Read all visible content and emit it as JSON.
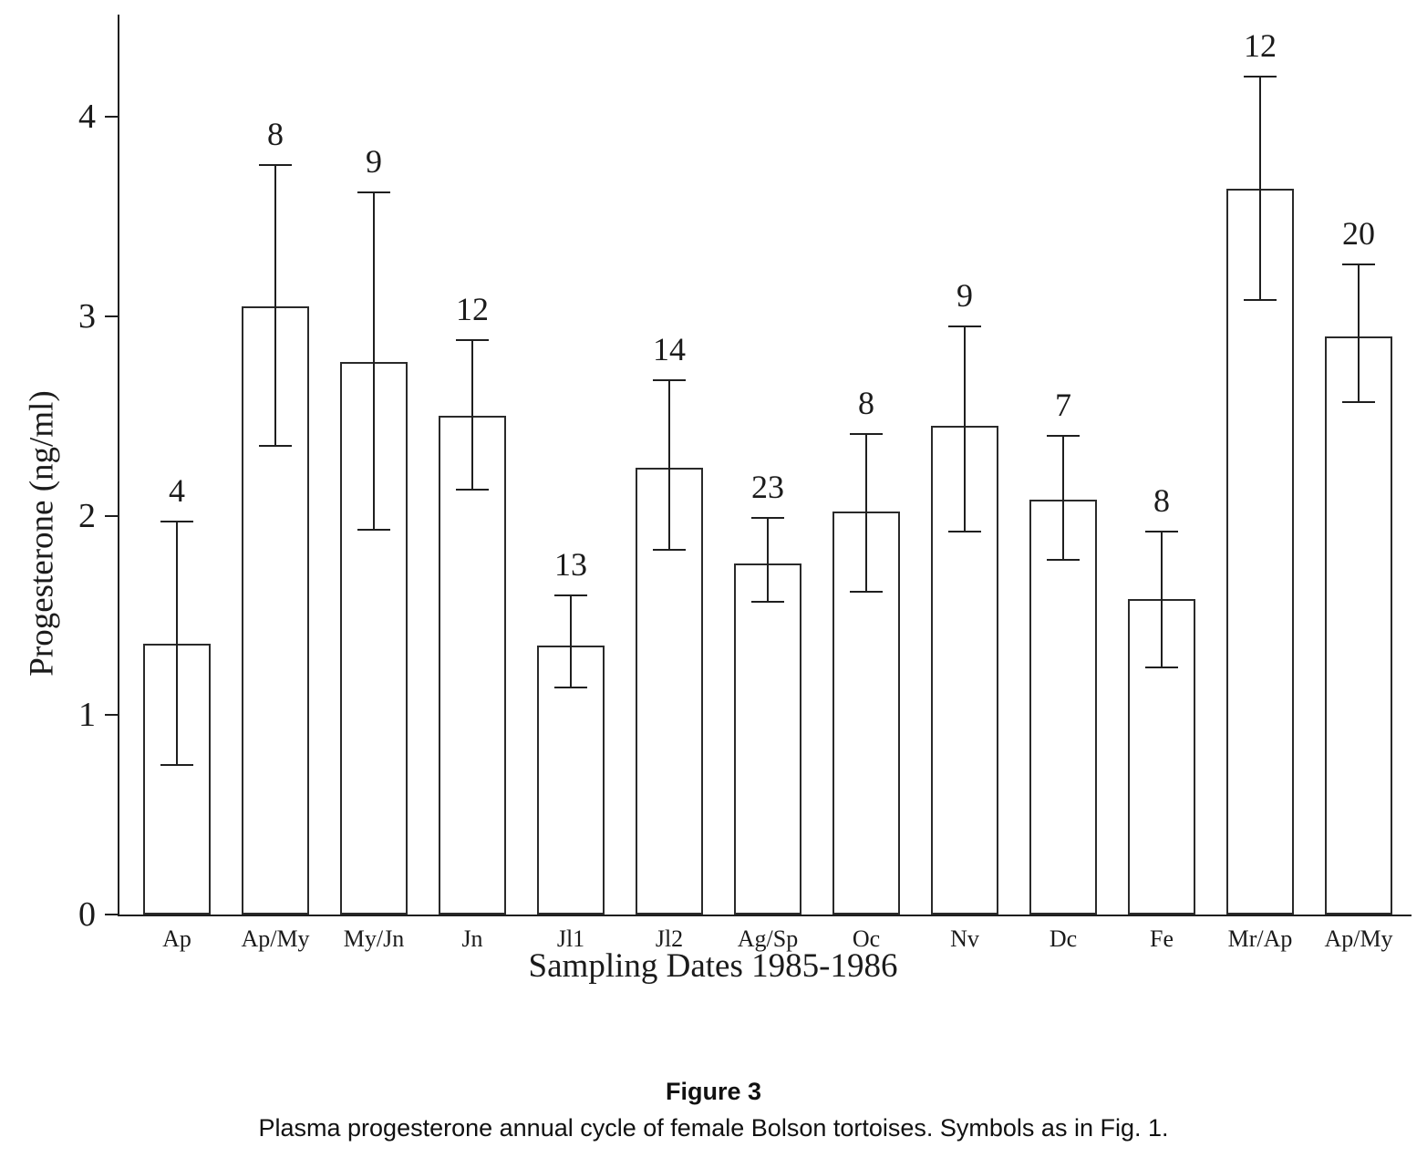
{
  "chart_data": {
    "type": "bar",
    "title": "",
    "xlabel": "Sampling Dates 1985-1986",
    "ylabel": "Progesterone (ng/ml)",
    "yticks": [
      0,
      1,
      2,
      3,
      4
    ],
    "ylim": [
      0,
      4.5
    ],
    "grid": false,
    "legend": "none",
    "categories": [
      "Ap",
      "Ap/My",
      "My/Jn",
      "Jn",
      "Jl1",
      "Jl2",
      "Ag/Sp",
      "Oc",
      "Nv",
      "Dc",
      "Fe",
      "Mr/Ap",
      "Ap/My"
    ],
    "values": [
      1.36,
      3.05,
      2.77,
      2.5,
      1.35,
      2.24,
      1.76,
      2.02,
      2.45,
      2.08,
      1.58,
      3.64,
      2.9
    ],
    "error_low": [
      0.75,
      2.35,
      1.93,
      2.13,
      1.14,
      1.83,
      1.57,
      1.62,
      1.92,
      1.78,
      1.24,
      3.08,
      2.57
    ],
    "error_high": [
      1.97,
      3.76,
      3.62,
      2.88,
      1.6,
      2.68,
      1.99,
      2.41,
      2.95,
      2.4,
      1.92,
      4.2,
      3.26
    ],
    "sample_sizes": [
      4,
      8,
      9,
      12,
      13,
      14,
      23,
      8,
      9,
      7,
      8,
      12,
      20
    ],
    "bar_fill": "#ffffff",
    "line_color": "#1f1f1f"
  },
  "caption": {
    "title": "Figure 3",
    "text": "Plasma progesterone annual cycle of female Bolson tortoises. Symbols as in Fig. 1."
  }
}
